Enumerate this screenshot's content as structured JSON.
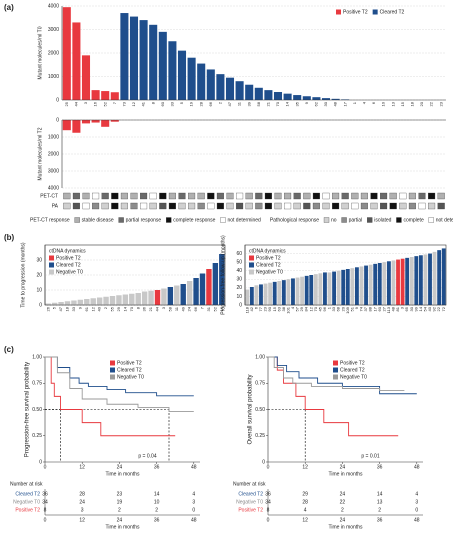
{
  "panel_labels": [
    "(a)",
    "(b)",
    "(c)"
  ],
  "chart_data": [
    {
      "type": "bar",
      "ylabel": "Mutant molecules/ml T0",
      "legend": "upper right",
      "grid": true,
      "categories": [
        "25",
        "44",
        "3",
        "16",
        "52",
        "7",
        "73",
        "12",
        "41",
        "8",
        "60",
        "33",
        "5",
        "19",
        "28",
        "66",
        "2",
        "47",
        "11",
        "39",
        "58",
        "21",
        "70",
        "14",
        "35",
        "9",
        "62",
        "30",
        "48",
        "17",
        "1",
        "4",
        "6",
        "10",
        "13",
        "15",
        "18",
        "20",
        "22",
        "23"
      ],
      "ylim": [
        0,
        4000
      ],
      "yticks": [
        0,
        1000,
        2000,
        3000,
        4000
      ],
      "series": [
        {
          "name": "Positive T2",
          "color": "#e8393f",
          "values": [
            3950,
            3300,
            1900,
            420,
            380,
            330,
            null,
            null,
            null,
            null,
            null,
            null,
            null,
            null,
            null,
            null,
            null,
            null,
            null,
            null,
            null,
            null,
            null,
            null,
            null,
            null,
            null,
            null,
            null,
            null,
            null,
            null,
            null,
            null,
            null,
            null,
            null,
            null,
            null,
            null
          ]
        },
        {
          "name": "Cleared T2",
          "color": "#1f4e8c",
          "values": [
            null,
            null,
            null,
            null,
            null,
            null,
            3700,
            3550,
            3400,
            3200,
            2900,
            2500,
            2100,
            1800,
            1550,
            1300,
            1100,
            950,
            800,
            650,
            520,
            420,
            340,
            270,
            210,
            160,
            120,
            80,
            50,
            25,
            null,
            null,
            null,
            null,
            null,
            null,
            null,
            null,
            null,
            null
          ]
        }
      ]
    },
    {
      "type": "bar",
      "ylabel": "Mutant molecules/ml T2",
      "reverse": true,
      "grid": true,
      "ylim": [
        0,
        4000
      ],
      "yticks": [
        0,
        1000,
        2000,
        3000,
        4000
      ],
      "series": [
        {
          "color": "#e8393f",
          "values": [
            600,
            750,
            200,
            150,
            400,
            100,
            null,
            null,
            null,
            null,
            null,
            null,
            null,
            null,
            null,
            null,
            null,
            null,
            null,
            null,
            null,
            null,
            null,
            null,
            null,
            null,
            null,
            null,
            null,
            null,
            null,
            null,
            null,
            null,
            null,
            null,
            null,
            null,
            null,
            null
          ]
        }
      ]
    },
    {
      "type": "tiles",
      "rows": [
        {
          "name": "PET-CT",
          "legend": 0,
          "values": [
            0,
            1,
            0,
            3,
            1,
            2,
            0,
            0,
            1,
            3,
            2,
            0,
            1,
            0,
            0,
            2,
            1,
            0,
            3,
            0,
            1,
            2,
            0,
            0,
            1,
            0,
            2,
            3,
            0,
            1,
            0,
            0,
            2,
            1,
            0,
            3,
            0,
            1,
            2,
            0
          ]
        },
        {
          "name": "PA",
          "legend": 1,
          "values": [
            0,
            2,
            4,
            1,
            0,
            3,
            0,
            1,
            4,
            0,
            2,
            3,
            0,
            0,
            1,
            4,
            3,
            0,
            2,
            0,
            1,
            3,
            0,
            4,
            0,
            2,
            1,
            0,
            3,
            0,
            4,
            1,
            0,
            2,
            3,
            0,
            1,
            4,
            0,
            2
          ]
        }
      ],
      "legends": [
        {
          "title": "PET-CT response",
          "items": [
            {
              "label": "stable disease",
              "color": "#b0b0b0"
            },
            {
              "label": "partial response",
              "color": "#6a6a6a"
            },
            {
              "label": "complete response",
              "color": "#111111"
            },
            {
              "label": "not determined",
              "color": "#ffffff"
            }
          ]
        },
        {
          "title": "Pathological response",
          "items": [
            {
              "label": "no",
              "color": "#d0d0d0"
            },
            {
              "label": "partial",
              "color": "#8c8c8c"
            },
            {
              "label": "isolated",
              "color": "#555555"
            },
            {
              "label": "complete",
              "color": "#111111"
            },
            {
              "label": "not determined",
              "color": "#ffffff"
            }
          ]
        }
      ]
    },
    {
      "type": "bar",
      "ylabel": "Time to progression (months)",
      "legend": "upper left",
      "legend_title": "ctDNA dynamics",
      "frame": true,
      "grid": true,
      "categories": [
        "26",
        "5",
        "47",
        "18",
        "33",
        "9",
        "61",
        "12",
        "40",
        "2",
        "55",
        "29",
        "14",
        "70",
        "8",
        "36",
        "21",
        "44",
        "3",
        "58",
        "11",
        "49",
        "24",
        "66",
        "7",
        "31",
        "52",
        "16"
      ],
      "ylim": [
        0,
        40
      ],
      "yticks": [
        0,
        10,
        20,
        30
      ],
      "series": [
        {
          "name": "Positive T2",
          "color": "#e8393f",
          "values": [
            null,
            null,
            null,
            null,
            null,
            null,
            null,
            null,
            null,
            null,
            null,
            null,
            null,
            null,
            null,
            null,
            null,
            10,
            null,
            null,
            null,
            null,
            null,
            null,
            null,
            24,
            null,
            null
          ]
        },
        {
          "name": "Cleared T2",
          "color": "#1f4e8c",
          "values": [
            null,
            null,
            null,
            null,
            null,
            null,
            null,
            null,
            null,
            null,
            null,
            null,
            null,
            null,
            null,
            null,
            null,
            null,
            null,
            12,
            null,
            14,
            null,
            18,
            21,
            null,
            28,
            34
          ]
        },
        {
          "name": "Negative T0",
          "color": "#c8c8c8",
          "values": [
            1,
            1.5,
            2,
            2.5,
            3,
            3.5,
            4,
            4.5,
            5,
            5.5,
            6,
            6.5,
            7,
            7.5,
            8,
            9,
            9.5,
            null,
            11,
            null,
            13,
            null,
            16,
            null,
            null,
            null,
            null,
            null
          ]
        }
      ]
    },
    {
      "type": "bar",
      "ylabel": "Progression-free follow-up (months)",
      "legend": "upper left",
      "legend_title": "ctDNA dynamics",
      "frame": true,
      "grid": true,
      "categories": [
        "118",
        "42",
        "6",
        "77",
        "23",
        "90",
        "15",
        "63",
        "38",
        "101",
        "4",
        "57",
        "29",
        "84",
        "12",
        "70",
        "45",
        "96",
        "1",
        "33",
        "68",
        "20",
        "109",
        "51",
        "9",
        "74",
        "37",
        "88",
        "17",
        "60",
        "27",
        "113",
        "48",
        "81",
        "3",
        "65",
        "30",
        "99",
        "14",
        "54",
        "40",
        "92",
        "22",
        "72"
      ],
      "ylim": [
        0,
        70
      ],
      "yticks": [
        0,
        10,
        20,
        30,
        40,
        50,
        60
      ],
      "series": [
        {
          "name": "Positive T2",
          "color": "#e8393f",
          "values": [
            null,
            null,
            null,
            null,
            null,
            null,
            null,
            null,
            null,
            null,
            null,
            null,
            null,
            null,
            null,
            null,
            null,
            null,
            null,
            null,
            null,
            null,
            null,
            null,
            null,
            null,
            null,
            null,
            null,
            null,
            null,
            null,
            null,
            53,
            54,
            null,
            null,
            null,
            null,
            null,
            null,
            null,
            null,
            null
          ]
        },
        {
          "name": "Cleared T2",
          "color": "#1f4e8c",
          "values": [
            null,
            21,
            null,
            24,
            null,
            null,
            27,
            null,
            29,
            null,
            31,
            null,
            null,
            34,
            35,
            null,
            null,
            38,
            null,
            39,
            null,
            41,
            42,
            null,
            44,
            null,
            46,
            null,
            48,
            49,
            null,
            51,
            null,
            null,
            null,
            55,
            null,
            57,
            58,
            null,
            60,
            null,
            64,
            66
          ]
        },
        {
          "name": "Negative T0",
          "color": "#c8c8c8",
          "values": [
            18,
            null,
            23,
            null,
            25,
            26,
            null,
            28,
            null,
            30,
            null,
            32,
            33,
            null,
            null,
            36,
            37,
            null,
            38,
            null,
            40,
            null,
            null,
            43,
            null,
            45,
            null,
            47,
            null,
            null,
            50,
            null,
            52,
            null,
            null,
            null,
            56,
            null,
            null,
            59,
            null,
            62,
            null,
            null
          ]
        }
      ]
    },
    {
      "type": "km",
      "ylabel": "Progression-free survival probability",
      "xlabel": "Time in months",
      "legend": "upper right",
      "xlim": [
        0,
        50
      ],
      "xticks": [
        0,
        12,
        24,
        36,
        48
      ],
      "ylim": [
        0,
        1
      ],
      "yticks": [
        0,
        0.25,
        {
          "value": 0.5,
          "label": "0.50"
        },
        0.75,
        {
          "value": 1,
          "label": "1.00"
        }
      ],
      "annotation": "p = 0.04",
      "medians": [
        {
          "x": 5,
          "y": 0.5
        },
        {
          "x": 40,
          "y": 0.5
        }
      ],
      "series": [
        {
          "name": "Positive T2",
          "color": "#e8393f",
          "x": [
            0,
            2,
            3,
            5,
            12,
            18,
            42
          ],
          "y": [
            1,
            0.75,
            0.625,
            0.5,
            0.375,
            0.25,
            0.25
          ]
        },
        {
          "name": "Cleared T2",
          "color": "#1f4e8c",
          "x": [
            0,
            4,
            8,
            11,
            14,
            20,
            26,
            36,
            48
          ],
          "y": [
            1,
            0.9,
            0.8,
            0.75,
            0.72,
            0.69,
            0.66,
            0.63,
            0.63
          ]
        },
        {
          "name": "Negative T0",
          "color": "#9a9a9a",
          "x": [
            0,
            4,
            8,
            12,
            20,
            30,
            40,
            48
          ],
          "y": [
            1,
            0.85,
            0.7,
            0.6,
            0.55,
            0.52,
            0.48,
            0.48
          ]
        }
      ],
      "risk_table": {
        "title": "Number at risk",
        "xlabel": "Time in months",
        "rows": [
          {
            "name": "Cleared T2",
            "color": "#1f4e8c",
            "values": [
              36,
              28,
              23,
              14,
              4
            ]
          },
          {
            "name": "Negative T0",
            "color": "#888888",
            "values": [
              34,
              24,
              19,
              10,
              3
            ]
          },
          {
            "name": "Positive T2",
            "color": "#e8393f",
            "values": [
              8,
              3,
              2,
              2,
              0
            ]
          }
        ]
      }
    },
    {
      "type": "km",
      "ylabel": "Overall survival probability",
      "xlabel": "Time in months",
      "legend": "upper right",
      "xlim": [
        0,
        50
      ],
      "xticks": [
        0,
        12,
        24,
        36,
        48
      ],
      "ylim": [
        0,
        1
      ],
      "yticks": [
        0,
        0.25,
        {
          "value": 0.5,
          "label": "0.50"
        },
        0.75,
        {
          "value": 1,
          "label": "1.00"
        }
      ],
      "annotation": "p = 0.01",
      "medians": [
        {
          "x": 12,
          "y": 0.5
        }
      ],
      "series": [
        {
          "name": "Positive T2",
          "color": "#e8393f",
          "x": [
            0,
            3,
            5,
            9,
            12,
            18,
            26,
            42
          ],
          "y": [
            1,
            0.875,
            0.75,
            0.625,
            0.5,
            0.375,
            0.25,
            0.25
          ]
        },
        {
          "name": "Cleared T2",
          "color": "#1f4e8c",
          "x": [
            0,
            3,
            6,
            10,
            16,
            24,
            36,
            48
          ],
          "y": [
            1,
            0.92,
            0.86,
            0.8,
            0.75,
            0.72,
            0.65,
            0.65
          ]
        },
        {
          "name": "Negative T0",
          "color": "#9a9a9a",
          "x": [
            0,
            2,
            5,
            8,
            14,
            24,
            36,
            44
          ],
          "y": [
            1,
            0.9,
            0.8,
            0.75,
            0.72,
            0.7,
            0.68,
            0.68
          ]
        }
      ],
      "risk_table": {
        "title": "Number at risk",
        "xlabel": "Time in months",
        "rows": [
          {
            "name": "Cleared T2",
            "color": "#1f4e8c",
            "values": [
              36,
              29,
              24,
              14,
              4
            ]
          },
          {
            "name": "Negative T0",
            "color": "#888888",
            "values": [
              34,
              28,
              22,
              13,
              3
            ]
          },
          {
            "name": "Positive T2",
            "color": "#e8393f",
            "values": [
              8,
              4,
              2,
              2,
              0
            ]
          }
        ]
      }
    }
  ]
}
